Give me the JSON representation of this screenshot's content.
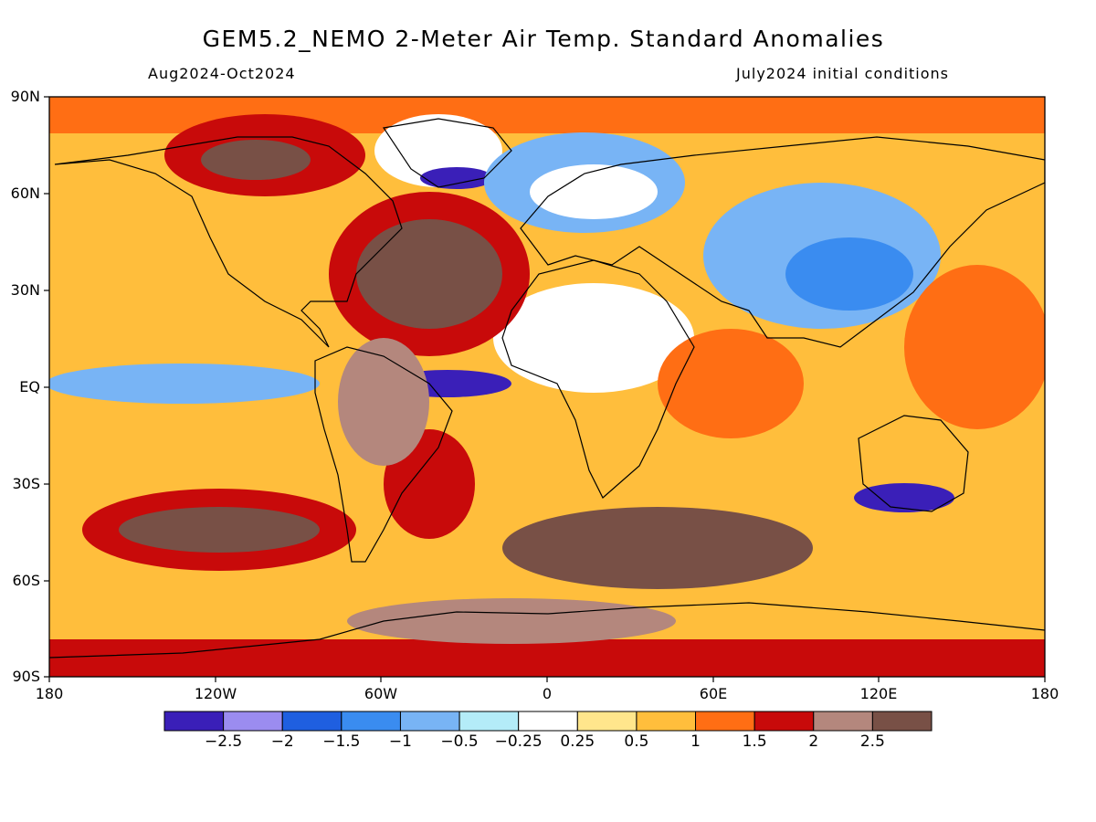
{
  "title": "GEM5.2_NEMO 2-Meter Air Temp. Standard Anomalies",
  "period": "Aug2024-Oct2024",
  "init": "July2024 initial conditions",
  "lat_labels": [
    "90N",
    "60N",
    "30N",
    "EQ",
    "30S",
    "60S",
    "90S"
  ],
  "lon_labels": [
    "180",
    "120W",
    "60W",
    "0",
    "60E",
    "120E",
    "180"
  ],
  "colorbar": {
    "colors": [
      "#3a1fb8",
      "#9b8cf0",
      "#1f5fe0",
      "#3a8cf0",
      "#78b4f5",
      "#b4ecf8",
      "#ffffff",
      "#ffe68c",
      "#ffbe3c",
      "#ff6e14",
      "#c80a0a",
      "#b4877d",
      "#785046"
    ],
    "labels": [
      "-2.5",
      "-2",
      "-1.5",
      "-1",
      "-0.5",
      "-0.25",
      "0.25",
      "0.5",
      "1",
      "1.5",
      "2",
      "2.5"
    ]
  }
}
